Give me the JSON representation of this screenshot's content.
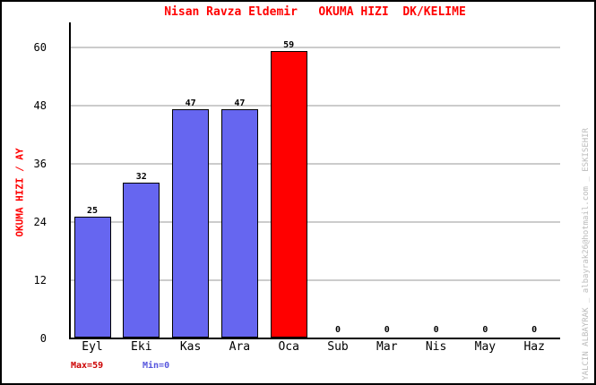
{
  "window": {
    "background": "#FFFFFF",
    "border_color": "#000000"
  },
  "chart_data": {
    "type": "bar",
    "title": "Nisan Ravza Eldemir   OKUMA HIZI  DK/KELIME",
    "ylabel": "OKUMA HIZI / AY",
    "xlabel": "",
    "categories": [
      "Eyl",
      "Eki",
      "Kas",
      "Ara",
      "Oca",
      "Sub",
      "Mar",
      "Nis",
      "May",
      "Haz"
    ],
    "values": [
      25,
      32,
      47,
      47,
      59,
      0,
      0,
      0,
      0,
      0
    ],
    "yticks": [
      0,
      12,
      24,
      36,
      48,
      60
    ],
    "ylim": [
      0,
      60
    ],
    "grid": true,
    "legend_position": "none",
    "highlight_index": 4,
    "summary": {
      "max_label": "Max=59",
      "min_label": "Min=0"
    }
  },
  "colors": {
    "title": "#FF0000",
    "ylabel": "#FF0000",
    "bar": "#6666F0",
    "bar_highlight": "#FF0000",
    "bar_border": "#000000",
    "grid": "#CCCCCC",
    "axis": "#000000",
    "tick_text": "#000000",
    "value_text": "#000000",
    "max_text": "#CC0000",
    "min_text": "#5555DD",
    "watermark": "#BBBBBB"
  },
  "watermark": "YALCIN ALBAYRAK _ albayrak26@hotmail.com _ ESKISEHIR"
}
